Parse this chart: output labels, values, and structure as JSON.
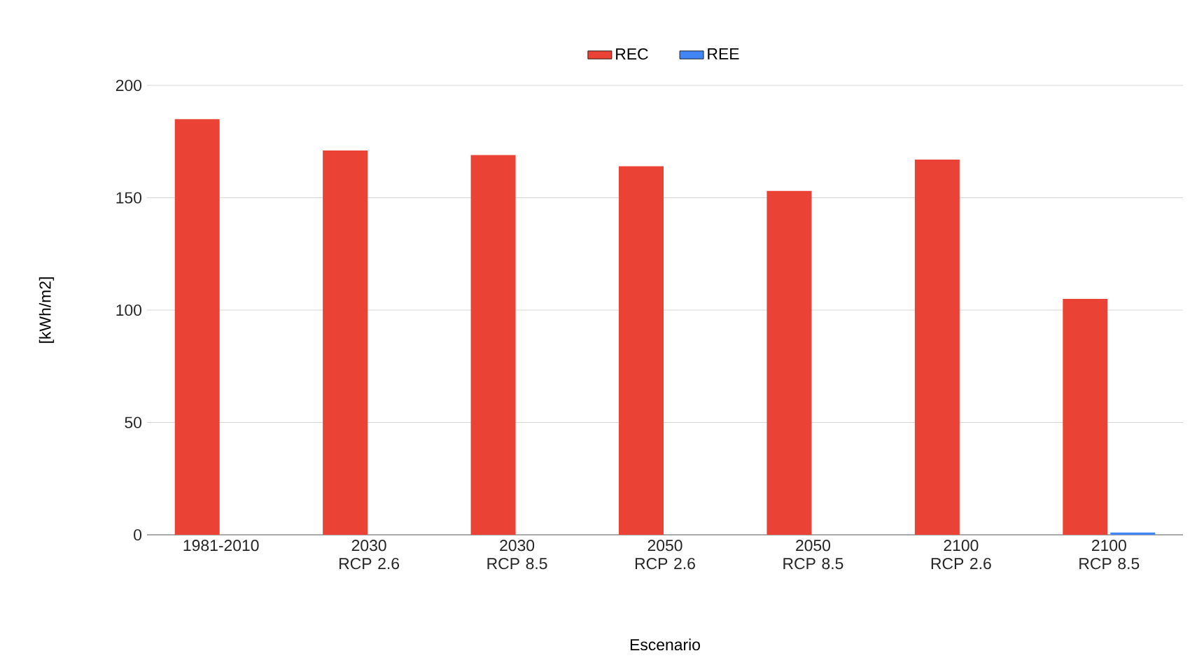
{
  "chart_data": {
    "type": "bar",
    "xlabel": "Escenario",
    "ylabel": "[kWh/m2]",
    "categories": [
      "1981-2010",
      "2030 RCP 2.6",
      "2030 RCP 8.5",
      "2050 RCP 2.6",
      "2050 RCP 8.5",
      "2100 RCP 2.6",
      "2100 RCP 8.5"
    ],
    "series": [
      {
        "name": "REC",
        "color": "#ea4335",
        "values": [
          185,
          171,
          169,
          164,
          153,
          167,
          105
        ]
      },
      {
        "name": "REE",
        "color": "#4285f4",
        "values": [
          0,
          0,
          0,
          0,
          0,
          0,
          1
        ]
      }
    ],
    "ylim": [
      0,
      200
    ],
    "yticks": [
      0,
      50,
      100,
      150,
      200
    ],
    "grid": "y",
    "legend": "top"
  }
}
